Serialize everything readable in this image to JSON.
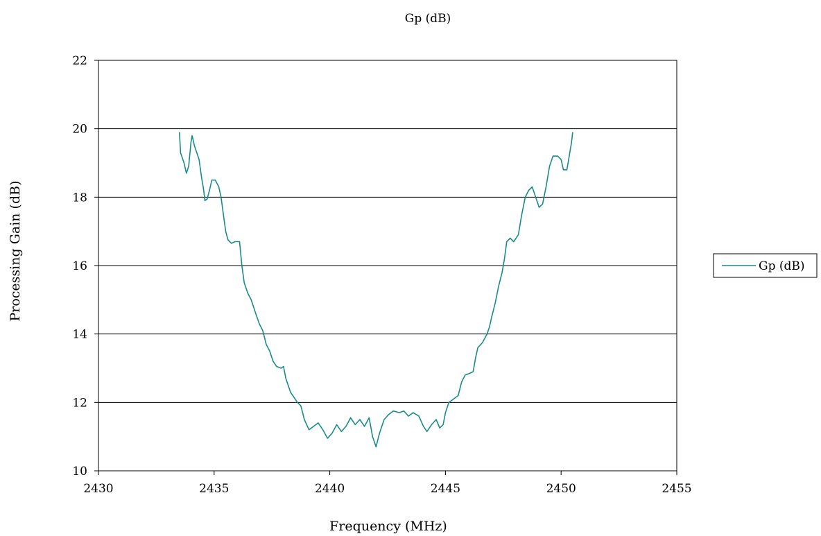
{
  "chart_data": {
    "type": "line",
    "title": "Gp (dB)",
    "xlabel": "Frequency (MHz)",
    "ylabel": "Processing Gain (dB)",
    "xlim": [
      2430,
      2455
    ],
    "ylim": [
      10,
      22
    ],
    "xticks": [
      "2430",
      "2435",
      "2440",
      "2445",
      "2450",
      "2455"
    ],
    "yticks": [
      "10",
      "12",
      "14",
      "16",
      "18",
      "20",
      "22"
    ],
    "grid": "horizontal",
    "legend_position": "right",
    "series": [
      {
        "name": "Gp (dB)",
        "color": "#1a8a8a",
        "points": [
          [
            2433.5,
            19.9
          ],
          [
            2433.55,
            19.3
          ],
          [
            2433.7,
            19.0
          ],
          [
            2433.8,
            18.7
          ],
          [
            2433.9,
            18.9
          ],
          [
            2434.0,
            19.6
          ],
          [
            2434.05,
            19.8
          ],
          [
            2434.15,
            19.5
          ],
          [
            2434.25,
            19.3
          ],
          [
            2434.35,
            19.1
          ],
          [
            2434.45,
            18.6
          ],
          [
            2434.55,
            18.2
          ],
          [
            2434.6,
            17.9
          ],
          [
            2434.7,
            17.95
          ],
          [
            2434.8,
            18.2
          ],
          [
            2434.9,
            18.5
          ],
          [
            2435.05,
            18.5
          ],
          [
            2435.2,
            18.3
          ],
          [
            2435.3,
            18.0
          ],
          [
            2435.4,
            17.5
          ],
          [
            2435.5,
            17.0
          ],
          [
            2435.6,
            16.75
          ],
          [
            2435.75,
            16.65
          ],
          [
            2435.9,
            16.7
          ],
          [
            2436.1,
            16.7
          ],
          [
            2436.2,
            16.0
          ],
          [
            2436.3,
            15.5
          ],
          [
            2436.45,
            15.2
          ],
          [
            2436.6,
            15.0
          ],
          [
            2436.8,
            14.6
          ],
          [
            2436.95,
            14.3
          ],
          [
            2437.1,
            14.1
          ],
          [
            2437.25,
            13.7
          ],
          [
            2437.4,
            13.5
          ],
          [
            2437.55,
            13.2
          ],
          [
            2437.7,
            13.05
          ],
          [
            2437.9,
            13.0
          ],
          [
            2438.0,
            13.05
          ],
          [
            2438.1,
            12.7
          ],
          [
            2438.2,
            12.5
          ],
          [
            2438.3,
            12.3
          ],
          [
            2438.45,
            12.15
          ],
          [
            2438.6,
            12.0
          ],
          [
            2438.75,
            11.9
          ],
          [
            2438.9,
            11.5
          ],
          [
            2439.1,
            11.2
          ],
          [
            2439.3,
            11.3
          ],
          [
            2439.5,
            11.4
          ],
          [
            2439.7,
            11.2
          ],
          [
            2439.9,
            10.95
          ],
          [
            2440.1,
            11.1
          ],
          [
            2440.3,
            11.35
          ],
          [
            2440.5,
            11.15
          ],
          [
            2440.7,
            11.3
          ],
          [
            2440.9,
            11.55
          ],
          [
            2441.1,
            11.35
          ],
          [
            2441.3,
            11.5
          ],
          [
            2441.5,
            11.3
          ],
          [
            2441.7,
            11.55
          ],
          [
            2441.85,
            11.0
          ],
          [
            2442.0,
            10.7
          ],
          [
            2442.15,
            11.1
          ],
          [
            2442.35,
            11.5
          ],
          [
            2442.55,
            11.65
          ],
          [
            2442.75,
            11.75
          ],
          [
            2443.0,
            11.7
          ],
          [
            2443.2,
            11.75
          ],
          [
            2443.4,
            11.6
          ],
          [
            2443.6,
            11.7
          ],
          [
            2443.85,
            11.6
          ],
          [
            2444.05,
            11.3
          ],
          [
            2444.2,
            11.15
          ],
          [
            2444.4,
            11.35
          ],
          [
            2444.6,
            11.5
          ],
          [
            2444.75,
            11.25
          ],
          [
            2444.9,
            11.35
          ],
          [
            2445.0,
            11.7
          ],
          [
            2445.15,
            12.0
          ],
          [
            2445.35,
            12.1
          ],
          [
            2445.55,
            12.2
          ],
          [
            2445.7,
            12.6
          ],
          [
            2445.85,
            12.8
          ],
          [
            2446.05,
            12.85
          ],
          [
            2446.2,
            12.9
          ],
          [
            2446.3,
            13.3
          ],
          [
            2446.4,
            13.6
          ],
          [
            2446.6,
            13.75
          ],
          [
            2446.8,
            14.0
          ],
          [
            2446.9,
            14.2
          ],
          [
            2447.0,
            14.5
          ],
          [
            2447.15,
            14.9
          ],
          [
            2447.3,
            15.4
          ],
          [
            2447.45,
            15.8
          ],
          [
            2447.55,
            16.2
          ],
          [
            2447.65,
            16.7
          ],
          [
            2447.8,
            16.8
          ],
          [
            2447.95,
            16.7
          ],
          [
            2448.15,
            16.9
          ],
          [
            2448.3,
            17.5
          ],
          [
            2448.45,
            18.0
          ],
          [
            2448.6,
            18.2
          ],
          [
            2448.75,
            18.3
          ],
          [
            2448.9,
            18.0
          ],
          [
            2449.05,
            17.7
          ],
          [
            2449.2,
            17.8
          ],
          [
            2449.35,
            18.3
          ],
          [
            2449.5,
            18.9
          ],
          [
            2449.65,
            19.2
          ],
          [
            2449.85,
            19.2
          ],
          [
            2450.0,
            19.1
          ],
          [
            2450.1,
            18.8
          ],
          [
            2450.25,
            18.8
          ],
          [
            2450.35,
            19.2
          ],
          [
            2450.45,
            19.6
          ],
          [
            2450.5,
            19.9
          ]
        ]
      }
    ]
  }
}
